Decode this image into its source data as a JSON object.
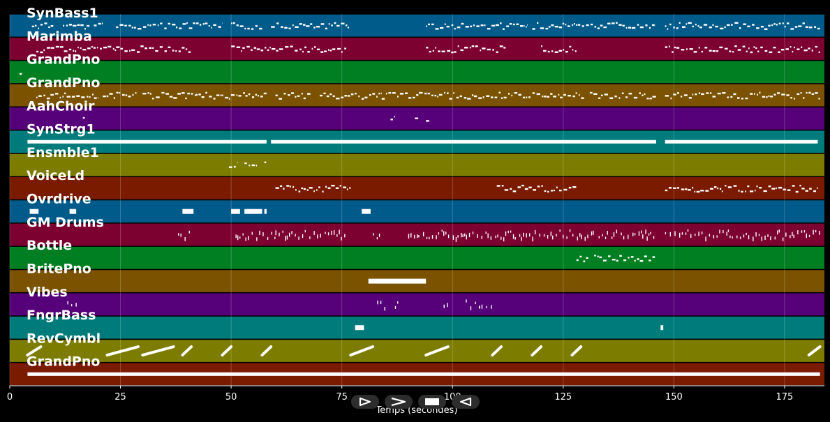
{
  "chart_data": {
    "type": "piano-roll",
    "xlabel": "Temps (secondes)",
    "xlim": [
      0,
      184
    ],
    "xticks": [
      0,
      25,
      50,
      75,
      100,
      125,
      150,
      175
    ],
    "grid": true,
    "tracks": [
      {
        "name": "SynBass1",
        "color": "#005a8a",
        "style": "notes",
        "segments": [
          [
            5,
            10
          ],
          [
            12,
            18
          ],
          [
            19,
            21
          ],
          [
            24,
            48
          ],
          [
            50,
            57
          ],
          [
            59,
            77
          ],
          [
            94,
            117
          ],
          [
            118,
            146
          ],
          [
            148,
            183
          ]
        ]
      },
      {
        "name": "Marimba",
        "color": "#7c0030",
        "style": "notes",
        "segments": [
          [
            6,
            24
          ],
          [
            24,
            41
          ],
          [
            50,
            76
          ],
          [
            94,
            112
          ],
          [
            120,
            128
          ],
          [
            148,
            183
          ]
        ]
      },
      {
        "name": "GrandPno",
        "color": "#007f22",
        "style": "notes",
        "segments": [
          [
            2.2,
            2.8
          ]
        ]
      },
      {
        "name": "GrandPno",
        "color": "#7a5200",
        "style": "notes",
        "segments": [
          [
            6,
            20
          ],
          [
            21,
            29
          ],
          [
            30,
            42
          ],
          [
            42,
            58
          ],
          [
            60,
            68
          ],
          [
            70,
            84
          ],
          [
            84,
            130
          ],
          [
            131,
            146
          ],
          [
            148,
            183
          ]
        ]
      },
      {
        "name": "AahChoir",
        "color": "#560079",
        "style": "notes",
        "segments": [
          [
            16.5,
            17
          ],
          [
            86,
            87
          ],
          [
            91.5,
            92.5
          ],
          [
            94,
            95
          ]
        ]
      },
      {
        "name": "SynStrg1",
        "color": "#007b7b",
        "style": "solid",
        "segments": [
          [
            4,
            58
          ],
          [
            59,
            146
          ],
          [
            148,
            182.5
          ]
        ]
      },
      {
        "name": "Ensmble1",
        "color": "#7c7c00",
        "style": "notes",
        "segments": [
          [
            49.5,
            51.5
          ],
          [
            53,
            56
          ],
          [
            57.5,
            58
          ]
        ]
      },
      {
        "name": "VoiceLd",
        "color": "#7a1b00",
        "style": "notes",
        "segments": [
          [
            60,
            77
          ],
          [
            110,
            128
          ],
          [
            148,
            182.5
          ]
        ]
      },
      {
        "name": "Ovrdrive",
        "color": "#005a8a",
        "style": "blocks",
        "segments": [
          [
            4.5,
            6.5
          ],
          [
            13.5,
            15
          ],
          [
            39,
            41.5
          ],
          [
            50,
            52
          ],
          [
            53,
            57
          ],
          [
            57.5,
            58
          ],
          [
            79.5,
            81.5
          ]
        ]
      },
      {
        "name": "GM Drums",
        "color": "#7c0030",
        "style": "ticks",
        "segments": [
          [
            38,
            41
          ],
          [
            51,
            60
          ],
          [
            60,
            76
          ],
          [
            82,
            84
          ],
          [
            90,
            118
          ],
          [
            118,
            132
          ],
          [
            133,
            146
          ],
          [
            148,
            183
          ]
        ]
      },
      {
        "name": "Bottle",
        "color": "#007f22",
        "style": "notes",
        "segments": [
          [
            128,
            131
          ],
          [
            132,
            146
          ]
        ]
      },
      {
        "name": "BritePno",
        "color": "#7a5200",
        "style": "blocks",
        "segments": [
          [
            81,
            94
          ]
        ]
      },
      {
        "name": "Vibes",
        "color": "#560079",
        "style": "ticks",
        "segments": [
          [
            13,
            15
          ],
          [
            83,
            85
          ],
          [
            87,
            88
          ],
          [
            98,
            99
          ],
          [
            103,
            106
          ],
          [
            106,
            109
          ]
        ]
      },
      {
        "name": "FngrBass",
        "color": "#007b7b",
        "style": "blocks",
        "segments": [
          [
            78,
            80
          ],
          [
            147,
            147.6
          ]
        ]
      },
      {
        "name": "RevCymbl",
        "color": "#7c7c00",
        "style": "sweeps",
        "segments": [
          [
            4,
            7
          ],
          [
            22,
            29
          ],
          [
            30,
            37
          ],
          [
            39,
            41
          ],
          [
            48,
            50
          ],
          [
            57,
            59
          ],
          [
            77,
            82
          ],
          [
            94,
            99
          ],
          [
            109,
            111
          ],
          [
            118,
            120
          ],
          [
            127,
            129
          ],
          [
            180.5,
            183
          ]
        ]
      },
      {
        "name": "GrandPno",
        "color": "#7a1b00",
        "style": "solid",
        "segments": [
          [
            4,
            183
          ]
        ]
      }
    ]
  },
  "controls": {
    "play_icon": "play-outline-icon",
    "forward_icon": "forward-chevron-icon",
    "stop_icon": "stop-square-icon",
    "backward_icon": "backward-outline-icon"
  }
}
